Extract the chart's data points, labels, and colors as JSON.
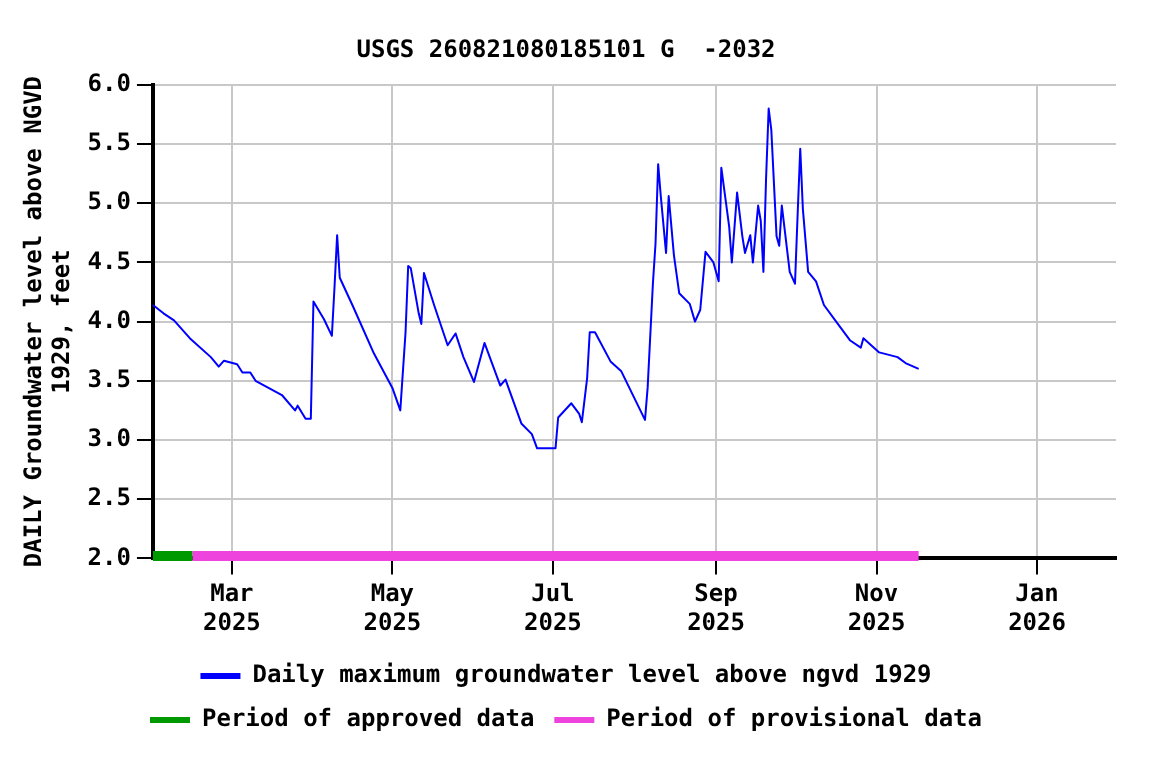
{
  "chart_data": {
    "type": "line",
    "title": "USGS 260821080185101 G  -2032",
    "ylabel": "DAILY Groundwater level above NGVD 1929, feet",
    "xlim": [
      "2025-01-30",
      "2026-01-31"
    ],
    "xticks": [
      {
        "value": "2025-03-01",
        "label": "Mar 2025"
      },
      {
        "value": "2025-05-01",
        "label": "May 2025"
      },
      {
        "value": "2025-07-01",
        "label": "Jul 2025"
      },
      {
        "value": "2025-09-01",
        "label": "Sep 2025"
      },
      {
        "value": "2025-11-01",
        "label": "Nov 2025"
      },
      {
        "value": "2026-01-01",
        "label": "Jan 2026"
      }
    ],
    "ylim": [
      2,
      6
    ],
    "yticks": [
      {
        "value": 2,
        "label": "2.0"
      },
      {
        "value": 2.5,
        "label": "2.5"
      },
      {
        "value": 3,
        "label": "3.0"
      },
      {
        "value": 3.5,
        "label": "3.5"
      },
      {
        "value": 4,
        "label": "4.0"
      },
      {
        "value": 4.5,
        "label": "4.5"
      },
      {
        "value": 5,
        "label": "5.0"
      },
      {
        "value": 5.5,
        "label": "5.5"
      },
      {
        "value": 6,
        "label": "6.0"
      }
    ],
    "grid": true,
    "legend": "bottom",
    "marker": "none",
    "line_style": "solid",
    "x": [
      "2025-01-30",
      "2025-02-03",
      "2025-02-07",
      "2025-02-13",
      "2025-02-21",
      "2025-02-24",
      "2025-02-26",
      "2025-03-03",
      "2025-03-05",
      "2025-03-08",
      "2025-03-10",
      "2025-03-20",
      "2025-03-25",
      "2025-03-26",
      "2025-03-29",
      "2025-03-31",
      "2025-04-01",
      "2025-04-05",
      "2025-04-08",
      "2025-04-09",
      "2025-04-10",
      "2025-04-11",
      "2025-04-16",
      "2025-04-24",
      "2025-05-01",
      "2025-05-04",
      "2025-05-06",
      "2025-05-07",
      "2025-05-08",
      "2025-05-11",
      "2025-05-12",
      "2025-05-13",
      "2025-05-17",
      "2025-05-22",
      "2025-05-25",
      "2025-05-28",
      "2025-06-01",
      "2025-06-05",
      "2025-06-11",
      "2025-06-13",
      "2025-06-19",
      "2025-06-23",
      "2025-06-25",
      "2025-07-02",
      "2025-07-03",
      "2025-07-08",
      "2025-07-11",
      "2025-07-12",
      "2025-07-14",
      "2025-07-15",
      "2025-07-17",
      "2025-07-23",
      "2025-07-27",
      "2025-08-05",
      "2025-08-06",
      "2025-08-08",
      "2025-08-09",
      "2025-08-10",
      "2025-08-11",
      "2025-08-13",
      "2025-08-14",
      "2025-08-16",
      "2025-08-18",
      "2025-08-22",
      "2025-08-24",
      "2025-08-26",
      "2025-08-28",
      "2025-08-31",
      "2025-09-02",
      "2025-09-03",
      "2025-09-06",
      "2025-09-07",
      "2025-09-09",
      "2025-09-11",
      "2025-09-12",
      "2025-09-14",
      "2025-09-15",
      "2025-09-17",
      "2025-09-18",
      "2025-09-19",
      "2025-09-20",
      "2025-09-21",
      "2025-09-22",
      "2025-09-24",
      "2025-09-25",
      "2025-09-26",
      "2025-09-29",
      "2025-10-01",
      "2025-10-02",
      "2025-10-03",
      "2025-10-04",
      "2025-10-06",
      "2025-10-09",
      "2025-10-12",
      "2025-10-17",
      "2025-10-22",
      "2025-10-26",
      "2025-10-27",
      "2025-11-02",
      "2025-11-09",
      "2025-11-12",
      "2025-11-17"
    ],
    "series": [
      {
        "name": "Daily maximum groundwater level above ngvd 1929",
        "color": "#0000ff",
        "values": [
          4.14,
          4.07,
          4.01,
          3.86,
          3.7,
          3.62,
          3.67,
          3.64,
          3.57,
          3.57,
          3.5,
          3.38,
          3.25,
          3.29,
          3.18,
          3.18,
          4.17,
          4.02,
          3.88,
          4.29,
          4.73,
          4.37,
          4.13,
          3.73,
          3.44,
          3.25,
          3.91,
          4.47,
          4.45,
          4.07,
          3.98,
          4.41,
          4.13,
          3.8,
          3.9,
          3.7,
          3.49,
          3.82,
          3.46,
          3.51,
          3.14,
          3.05,
          2.93,
          2.93,
          3.19,
          3.31,
          3.22,
          3.15,
          3.52,
          3.91,
          3.91,
          3.66,
          3.58,
          3.17,
          3.44,
          4.32,
          4.66,
          5.33,
          5.06,
          4.58,
          5.06,
          4.56,
          4.24,
          4.15,
          4.0,
          4.1,
          4.59,
          4.5,
          4.34,
          5.3,
          4.8,
          4.5,
          5.09,
          4.72,
          4.58,
          4.73,
          4.5,
          4.98,
          4.85,
          4.42,
          5.2,
          5.8,
          5.62,
          4.72,
          4.64,
          4.98,
          4.42,
          4.32,
          4.9,
          5.46,
          4.95,
          4.42,
          4.34,
          4.14,
          3.99,
          3.84,
          3.78,
          3.86,
          3.74,
          3.7,
          3.65,
          3.6
        ]
      },
      {
        "name": "Period of approved data",
        "color": "#009900",
        "x": [
          "2025-01-30",
          "2025-02-14"
        ],
        "values": [
          2.02,
          2.02
        ]
      },
      {
        "name": "Period of provisional data",
        "color": "#ee44dd",
        "x": [
          "2025-02-14",
          "2025-11-17"
        ],
        "values": [
          2.02,
          2.02
        ]
      }
    ]
  }
}
